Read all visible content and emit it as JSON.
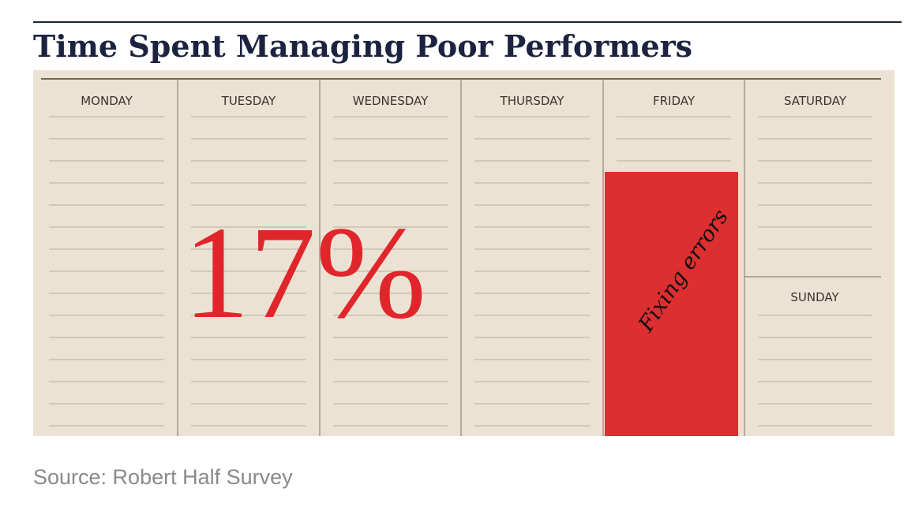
{
  "title": "Time Spent Managing Poor Performers",
  "calendar": {
    "days": [
      "MONDAY",
      "TUESDAY",
      "WEDNESDAY",
      "THURSDAY",
      "FRIDAY",
      "SATURDAY",
      "SUNDAY"
    ]
  },
  "stat": "17%",
  "annotation": "Fixing errors",
  "source": "Source: Robert Half Survey"
}
